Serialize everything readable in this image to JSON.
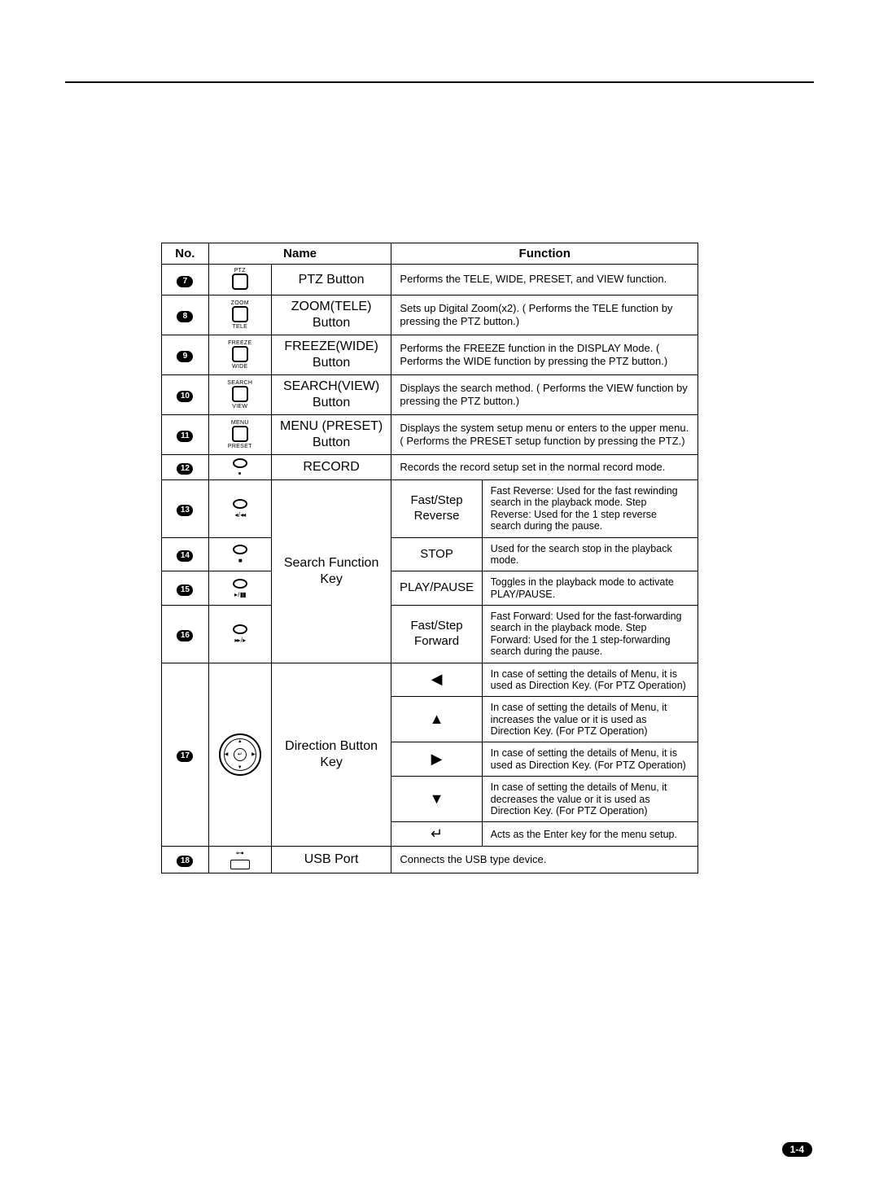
{
  "page_number": "1-4",
  "headers": {
    "no": "No.",
    "name": "Name",
    "function": "Function"
  },
  "rows": [
    {
      "num": "7",
      "icon_top": "PTZ",
      "icon_bottom": "",
      "name": "PTZ Button",
      "function": "Performs the TELE, WIDE, PRESET, and VIEW function."
    },
    {
      "num": "8",
      "icon_top": "ZOOM",
      "icon_bottom": "TELE",
      "name": "ZOOM(TELE) Button",
      "function": "Sets up Digital Zoom(x2).\n( Performs the TELE function by pressing the PTZ button.)"
    },
    {
      "num": "9",
      "icon_top": "FREEZE",
      "icon_bottom": "WIDE",
      "name": "FREEZE(WIDE) Button",
      "function": "Performs the FREEZE function in the DISPLAY Mode.\n( Performs the WIDE function by pressing the PTZ button.)"
    },
    {
      "num": "10",
      "icon_top": "SEARCH",
      "icon_bottom": "VIEW",
      "name": "SEARCH(VIEW) Button",
      "function": "Displays the search method.\n( Performs the VIEW function by pressing the PTZ button.)"
    },
    {
      "num": "11",
      "icon_top": "MENU",
      "icon_bottom": "PRESET",
      "name": "MENU (PRESET) Button",
      "function": "Displays the system setup menu or enters to the upper menu.( Performs the PRESET setup function by pressing the PTZ.)"
    },
    {
      "num": "12",
      "name": "RECORD",
      "function": "Records the record setup set in the normal record mode."
    }
  ],
  "search_group": {
    "name": "Search Function Key",
    "items": [
      {
        "num": "13",
        "glyph": "◂ / ◂◂",
        "sub": "Fast/Step Reverse",
        "function": "Fast Reverse: Used for the fast rewinding search in the playback mode.\nStep Reverse: Used for the 1 step reverse search during the pause."
      },
      {
        "num": "14",
        "glyph": "■",
        "sub": "STOP",
        "function": "Used for the search stop in the playback mode."
      },
      {
        "num": "15",
        "glyph": "▸ / ▮▮",
        "sub": "PLAY/PAUSE",
        "function": "Toggles in the playback mode to activate PLAY/PAUSE."
      },
      {
        "num": "16",
        "glyph": "▸▸ / ▸",
        "sub": "Fast/Step Forward",
        "function": "Fast Forward: Used for the fast-forwarding search in the playback mode.\nStep Forward: Used for the 1 step-forwarding search during the pause."
      }
    ]
  },
  "direction_group": {
    "num": "17",
    "name": "Direction Button Key",
    "items": [
      {
        "arrow": "◀",
        "function": "In case of setting the details of Menu, it is used as Direction Key. (For PTZ Operation)"
      },
      {
        "arrow": "▲",
        "function": "In case of setting the details of Menu, it increases the value or it is used as Direction Key. (For PTZ Operation)"
      },
      {
        "arrow": "▶",
        "function": "In case of setting the details of Menu, it is used as Direction Key. (For PTZ Operation)"
      },
      {
        "arrow": "▼",
        "function": "In case of setting the details of Menu, it decreases the value or it is used as Direction Key. (For PTZ Operation)"
      },
      {
        "arrow": "↵",
        "function": "Acts as the Enter key for the menu setup."
      }
    ]
  },
  "usb_row": {
    "num": "18",
    "name": "USB Port",
    "function": "Connects the USB type device."
  }
}
